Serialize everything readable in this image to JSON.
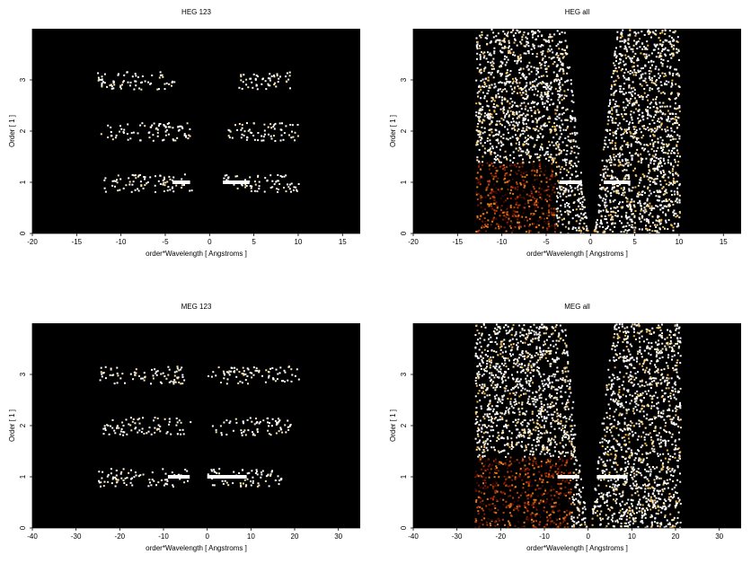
{
  "chart_data": [
    {
      "type": "heatmap",
      "title": "HEG 123",
      "xlabel": "order*Wavelength [ Angstroms ]",
      "ylabel": "Order [ 1 ]",
      "xlim": [
        -20,
        17
      ],
      "ylim": [
        0,
        4
      ],
      "xticks": [
        -20,
        -15,
        -10,
        -5,
        0,
        5,
        10,
        15
      ],
      "yticks": [
        0,
        1,
        2,
        3
      ],
      "bands": [
        {
          "order": 1,
          "ranges": [
            [
              -12,
              -2
            ],
            [
              1.5,
              10
            ]
          ],
          "peaks": [
            [
              -4.2,
              -2.2
            ],
            [
              1.5,
              4.5
            ]
          ]
        },
        {
          "order": 2,
          "ranges": [
            [
              -12.5,
              -2.2
            ],
            [
              2,
              10
            ]
          ]
        },
        {
          "order": 3,
          "ranges": [
            [
              -12.8,
              -4
            ],
            [
              3.2,
              9
            ]
          ]
        }
      ]
    },
    {
      "type": "heatmap",
      "title": "HEG all",
      "xlabel": "order*Wavelength [ Angstroms ]",
      "ylabel": "Order [ 1 ]",
      "xlim": [
        -20,
        17
      ],
      "ylim": [
        0,
        4
      ],
      "xticks": [
        -20,
        -15,
        -10,
        -5,
        0,
        5,
        10,
        15
      ],
      "yticks": [
        0,
        1,
        2,
        3
      ],
      "bands": [
        {
          "order": 1,
          "ranges": [
            [
              -13,
              -1
            ],
            [
              1,
              10
            ]
          ],
          "peaks": [
            [
              -3.5,
              -1
            ],
            [
              1.5,
              4.5
            ]
          ]
        }
      ]
    },
    {
      "type": "heatmap",
      "title": "MEG 123",
      "xlabel": "order*Wavelength [ Angstroms ]",
      "ylabel": "Order [ 1 ]",
      "xlim": [
        -40,
        35
      ],
      "ylim": [
        0,
        4
      ],
      "xticks": [
        -40,
        -30,
        -20,
        -10,
        0,
        10,
        20,
        30
      ],
      "yticks": [
        0,
        1,
        2,
        3
      ],
      "bands": [
        {
          "order": 1,
          "ranges": [
            [
              -25,
              -4
            ],
            [
              0,
              17
            ]
          ],
          "peaks": [
            [
              -9,
              -4
            ],
            [
              0,
              9
            ]
          ]
        },
        {
          "order": 2,
          "ranges": [
            [
              -24,
              -4
            ],
            [
              1,
              19
            ]
          ]
        },
        {
          "order": 3,
          "ranges": [
            [
              -25,
              -5
            ],
            [
              0,
              21
            ]
          ]
        }
      ]
    },
    {
      "type": "heatmap",
      "title": "MEG all",
      "xlabel": "order*Wavelength [ Angstroms ]",
      "ylabel": "Order [ 1 ]",
      "xlim": [
        -40,
        35
      ],
      "ylim": [
        0,
        4
      ],
      "xticks": [
        -40,
        -30,
        -20,
        -10,
        0,
        10,
        20,
        30
      ],
      "yticks": [
        0,
        1,
        2,
        3
      ],
      "bands": [
        {
          "order": 1,
          "ranges": [
            [
              -26,
              -2
            ],
            [
              1,
              21
            ]
          ],
          "peaks": [
            [
              -7,
              -2
            ],
            [
              2,
              9
            ]
          ]
        }
      ]
    }
  ],
  "colors": {
    "background": "#000000",
    "scale": [
      "#3a0800",
      "#7a1a04",
      "#b8400c",
      "#e07a1c",
      "#f5b84a",
      "#ffe7a8",
      "#ffffff"
    ]
  }
}
